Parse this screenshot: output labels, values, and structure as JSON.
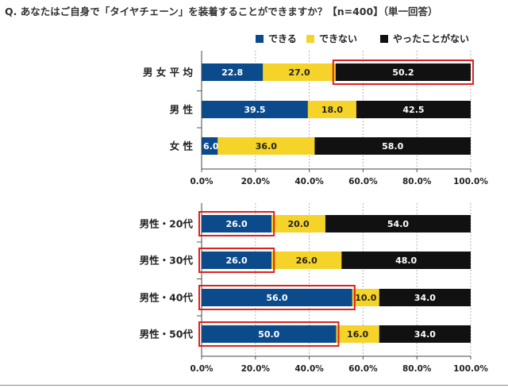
{
  "question": "Q. あなたはご自身で「タイヤチェーン」を装着することができますか？【n=400】（単一回答）",
  "legend": [
    {
      "label": "できる",
      "color": "#0b4a8b"
    },
    {
      "label": "できない",
      "color": "#f5d328"
    },
    {
      "label": "やったことがない",
      "color": "#111111"
    }
  ],
  "highlight_color": "#e02020",
  "chart_data": [
    {
      "type": "bar",
      "orientation": "horizontal",
      "stacked": true,
      "categories": [
        "男 女 平 均",
        "男 性",
        "女 性"
      ],
      "series": [
        {
          "name": "できる",
          "values": [
            22.8,
            39.5,
            6.0
          ],
          "color": "#0b4a8b"
        },
        {
          "name": "できない",
          "values": [
            27.0,
            18.0,
            36.0
          ],
          "color": "#f5d328"
        },
        {
          "name": "やったことがない",
          "values": [
            50.2,
            42.5,
            58.0
          ],
          "color": "#111111"
        }
      ],
      "xlim": [
        0,
        100
      ],
      "xticks": [
        "0.0%",
        "20.0%",
        "40.0%",
        "60.0%",
        "80.0%",
        "100.0%"
      ],
      "highlights": [
        {
          "category": 0,
          "series": 2
        }
      ],
      "grid": "vertical dotted"
    },
    {
      "type": "bar",
      "orientation": "horizontal",
      "stacked": true,
      "categories": [
        "男性・20代",
        "男性・30代",
        "男性・40代",
        "男性・50代"
      ],
      "series": [
        {
          "name": "できる",
          "values": [
            26.0,
            26.0,
            56.0,
            50.0
          ],
          "color": "#0b4a8b"
        },
        {
          "name": "できない",
          "values": [
            20.0,
            26.0,
            10.0,
            16.0
          ],
          "color": "#f5d328"
        },
        {
          "name": "やったことがない",
          "values": [
            54.0,
            48.0,
            34.0,
            34.0
          ],
          "color": "#111111"
        }
      ],
      "xlim": [
        0,
        100
      ],
      "xticks": [
        "0.0%",
        "20.0%",
        "40.0%",
        "60.0%",
        "80.0%",
        "100.0%"
      ],
      "highlights": [
        {
          "category": 0,
          "series": 0
        },
        {
          "category": 1,
          "series": 0
        },
        {
          "category": 2,
          "series": 0
        },
        {
          "category": 3,
          "series": 0
        }
      ],
      "grid": "vertical dotted"
    }
  ]
}
